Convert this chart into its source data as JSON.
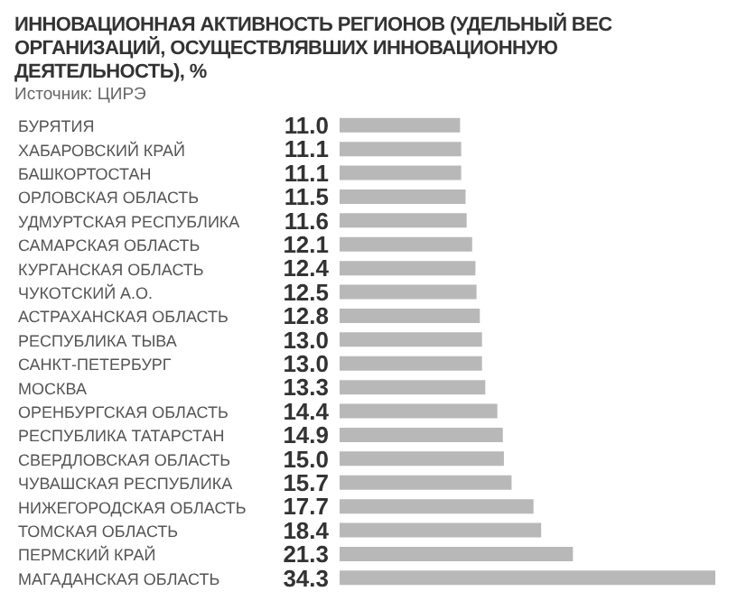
{
  "chart_data": {
    "type": "bar",
    "orientation": "horizontal",
    "title": "ИННОВАЦИОННАЯ АКТИВНОСТЬ РЕГИОНОВ (УДЕЛЬНЫЙ ВЕС ОРГАНИЗАЦИЙ, ОСУЩЕСТВЛЯВШИХ ИННОВАЦИОННУЮ ДЕЯТЕЛЬНОСТЬ), %",
    "annotations": [
      "Источник: ЦИРЭ"
    ],
    "categories": [
      "БУРЯТИЯ",
      "ХАБАРОВСКИЙ КРАЙ",
      "БАШКОРТОСТАН",
      "ОРЛОВСКАЯ ОБЛАСТЬ",
      "УДМУРТСКАЯ РЕСПУБЛИКА",
      "САМАРСКАЯ ОБЛАСТЬ",
      "КУРГАНСКАЯ ОБЛАСТЬ",
      "ЧУКОТСКИЙ  А.О.",
      "АСТРАХАНСКАЯ ОБЛАСТЬ",
      "РЕСПУБЛИКА ТЫВА",
      "САНКТ-ПЕТЕРБУРГ",
      "МОСКВА",
      "ОРЕНБУРГСКАЯ ОБЛАСТЬ",
      "РЕСПУБЛИКА ТАТАРСТАН",
      "СВЕРДЛОВСКАЯ ОБЛАСТЬ",
      "ЧУВАШСКАЯ РЕСПУБЛИКА",
      "НИЖЕГОРОДСКАЯ ОБЛАСТЬ",
      "ТОМСКАЯ ОБЛАСТЬ",
      "ПЕРМСКИЙ КРАЙ",
      "МАГАДАНСКАЯ ОБЛАСТЬ"
    ],
    "values": [
      11.0,
      11.1,
      11.1,
      11.5,
      11.6,
      12.1,
      12.4,
      12.5,
      12.8,
      13.0,
      13.0,
      13.3,
      14.4,
      14.9,
      15.0,
      15.7,
      17.7,
      18.4,
      21.3,
      34.3
    ],
    "value_labels": [
      "11.0",
      "11.1",
      "11.1",
      "11.5",
      "11.6",
      "12.1",
      "12.4",
      "12.5",
      "12.8",
      "13.0",
      "13.0",
      "13.3",
      "14.4",
      "14.9",
      "15.0",
      "15.7",
      "17.7",
      "18.4",
      "21.3",
      "34.3"
    ],
    "color": "#b8b8b8"
  }
}
